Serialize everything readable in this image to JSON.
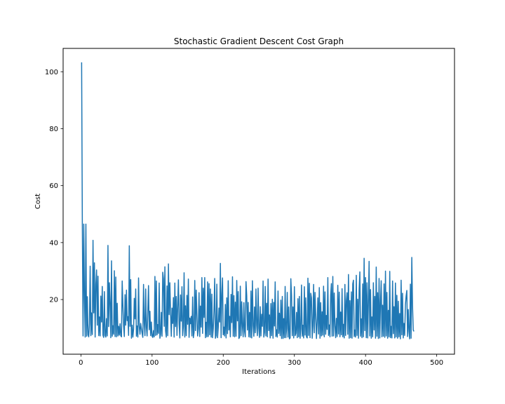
{
  "chart_data": {
    "type": "line",
    "title": "Stochastic Gradient Descent Cost Graph",
    "xlabel": "Iterations",
    "ylabel": "Cost",
    "xlim": [
      -25,
      525
    ],
    "ylim": [
      0.8,
      108.2
    ],
    "x_ticks": [
      0,
      100,
      200,
      300,
      400,
      500
    ],
    "y_ticks": [
      20,
      40,
      60,
      80,
      100
    ],
    "grid": false,
    "legend": "none",
    "line_color": "#1f77b4",
    "series": [
      {
        "x_start": 1,
        "x_step": 1,
        "values": [
          103.3,
          46.3,
          7.2,
          46.5,
          20.6,
          6.8,
          46.5,
          7.1,
          21,
          7.6,
          6.9,
          11.5,
          31.7,
          7.3,
          15.3,
          7.7,
          40.8,
          15.3,
          32.9,
          6.8,
          25.4,
          30.4,
          11,
          28.2,
          7.3,
          13.9,
          7.2,
          21.2,
          12.1,
          24.6,
          7.5,
          6.7,
          22.8,
          7.4,
          6.8,
          13.3,
          7.2,
          39,
          10.5,
          25.9,
          18.6,
          6.6,
          33.6,
          7.1,
          10.8,
          7.8,
          30.1,
          7,
          27.9,
          6.9,
          18.7,
          7.2,
          10.6,
          7.5,
          11.5,
          7.3,
          6.9,
          26.5,
          18.1,
          10.8,
          7,
          21.7,
          11,
          23.3,
          12.6,
          14,
          7.4,
          38.9,
          10.6,
          27,
          6.4,
          11,
          6.8,
          9.6,
          20.4,
          13.2,
          23.7,
          7.1,
          10.7,
          6.8,
          27.6,
          10.5,
          7.8,
          11.6,
          9.8,
          8.1,
          6.7,
          25.3,
          11.7,
          7.3,
          23.7,
          10.2,
          7.2,
          16,
          24.9,
          9.4,
          15.9,
          7.3,
          12.1,
          7.1,
          6.7,
          9.1,
          6.9,
          28.1,
          7.4,
          26.5,
          7.6,
          11.2,
          8.1,
          25.8,
          6.4,
          7.8,
          15.5,
          7.1,
          29.6,
          27.3,
          10.6,
          31.5,
          9,
          6.8,
          24.8,
          7.3,
          32.5,
          14.7,
          25.9,
          15.3,
          7.1,
          17,
          11.6,
          20.7,
          6.8,
          25.8,
          10.5,
          21.1,
          7.4,
          17.5,
          26.9,
          11.4,
          6.5,
          21.6,
          12.4,
          24.5,
          7.3,
          10.7,
          29.4,
          6.8,
          17.8,
          7.3,
          21.5,
          11.3,
          27.2,
          6.7,
          13.5,
          11.5,
          14.1,
          7.2,
          20.9,
          6.6,
          8.4,
          26.7,
          9.1,
          23.3,
          14.6,
          7.2,
          9.7,
          22.4,
          7,
          17.7,
          10.3,
          27.7,
          8.1,
          24,
          13.7,
          27.7,
          6.6,
          12,
          6.9,
          26.2,
          7,
          25.6,
          7.6,
          23.7,
          6.8,
          21.9,
          6.6,
          9.8,
          16.1,
          27.4,
          6.4,
          7.3,
          25.4,
          6.6,
          10.2,
          17,
          12.1,
          32.7,
          6.6,
          21.7,
          27.6,
          7.6,
          10.3,
          7.2,
          18.3,
          6.5,
          20.6,
          8,
          26.6,
          9.3,
          14.1,
          6.9,
          21.8,
          11.9,
          28,
          7.1,
          21.4,
          6.9,
          19.1,
          7.1,
          26.7,
          12.5,
          22.8,
          6.3,
          6.8,
          24.7,
          7.3,
          19.2,
          10.5,
          6.9,
          18.9,
          8.8,
          6.9,
          26.3,
          21.4,
          9.3,
          19,
          6.9,
          15.5,
          6.7,
          23,
          6.5,
          26.6,
          10.9,
          7.1,
          17.4,
          8.3,
          23.7,
          10.9,
          7.3,
          24,
          9.9,
          6.7,
          17.5,
          7.2,
          14.8,
          10.6,
          26.5,
          6.8,
          8.4,
          24.6,
          7.2,
          18.7,
          6.9,
          27.2,
          9.1,
          14.6,
          6.5,
          18.6,
          7.3,
          20.1,
          6.4,
          19,
          10.7,
          26.2,
          7,
          9.4,
          6.8,
          23,
          8.1,
          15.2,
          7.3,
          19.8,
          6.3,
          21.1,
          6.3,
          13.3,
          6.6,
          24.6,
          6.6,
          9.7,
          22.5,
          6.8,
          17.4,
          6.2,
          6.5,
          27.3,
          21.3,
          7.3,
          17.4,
          6.5,
          24.5,
          7.3,
          8.1,
          15.5,
          6.6,
          20.3,
          6.9,
          21.1,
          6.4,
          9.7,
          25.1,
          7.1,
          11,
          6.5,
          24.5,
          7.5,
          20.6,
          6.9,
          6.5,
          27.5,
          7.4,
          25.7,
          6.6,
          22.2,
          20.6,
          6.4,
          10.8,
          25.3,
          8.3,
          22.5,
          14.1,
          6.3,
          12.2,
          20.6,
          7.9,
          24.2,
          6.4,
          18.9,
          7.2,
          15.7,
          7.5,
          24.7,
          6.9,
          22.7,
          7.8,
          14.4,
          9.5,
          27.7,
          7.4,
          11.1,
          6.9,
          21.6,
          25.6,
          7.1,
          28.1,
          7.2,
          22.3,
          10.6,
          6.6,
          13.4,
          7,
          25,
          7.9,
          22.6,
          6.9,
          15.6,
          7.6,
          23.8,
          6.9,
          11.3,
          6.5,
          25.3,
          7.4,
          19.5,
          22.4,
          7.8,
          28.8,
          6.4,
          19.6,
          6.6,
          22.7,
          6.4,
          25.5,
          26.8,
          7,
          9.3,
          6.8,
          28.5,
          7.4,
          20.1,
          6.4,
          23.5,
          29.7,
          7.1,
          13.2,
          6.6,
          25.5,
          6.9,
          34.5,
          9.1,
          27.7,
          6.6,
          25.9,
          6.5,
          19.2,
          33.4,
          7.2,
          23.5,
          6.4,
          13.9,
          6.9,
          25.9,
          9.3,
          21.1,
          6.4,
          31.4,
          7.1,
          22.4,
          6.3,
          27.4,
          6.5,
          18.9,
          26.6,
          6.9,
          18,
          7.1,
          25.5,
          6.7,
          30,
          7.2,
          22.5,
          6.4,
          16.2,
          6.9,
          29.9,
          6.6,
          10.6,
          6.5,
          26.5,
          8,
          17.5,
          6.5,
          25.8,
          6.9,
          21.5,
          6.4,
          19.4,
          6.9,
          15.1,
          6.2,
          26.8,
          7.6,
          22.2,
          6.5,
          11.6,
          7.4,
          18.2,
          21.2,
          23.2,
          7,
          16.5,
          8.8,
          6.2,
          25.4,
          6.4,
          34.8,
          18,
          9.3,
          8.8
        ]
      }
    ]
  }
}
